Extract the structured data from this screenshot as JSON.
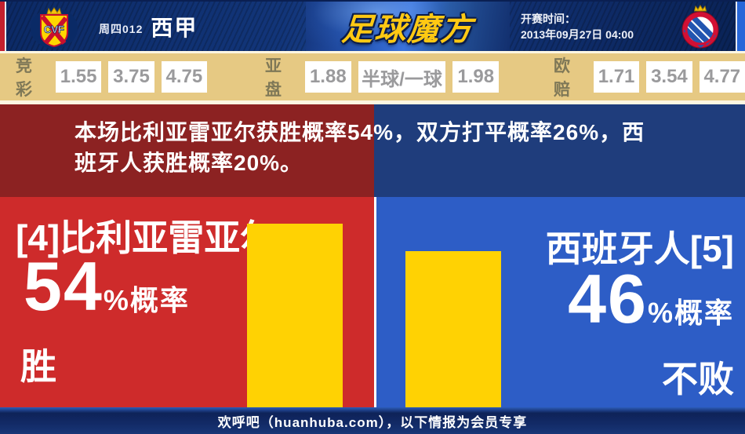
{
  "header": {
    "match_code": "周四012",
    "league": "西甲",
    "site_logo": "足球魔方",
    "home_badge_monogram": "CVF",
    "kickoff_label": "开赛时间：",
    "kickoff_time": "2013年09月27日 04:00"
  },
  "odds": {
    "groups": [
      {
        "label": "竞彩",
        "values": [
          "1.55",
          "3.75",
          "4.75"
        ]
      },
      {
        "label": "亚盘",
        "values": [
          "1.88",
          "半球/一球",
          "1.98"
        ]
      },
      {
        "label": "欧赔",
        "values": [
          "1.71",
          "3.54",
          "4.77"
        ]
      }
    ]
  },
  "banner": {
    "lines": [
      "本场比利亚雷亚尔获胜概率54%，双方打平概率26%，西",
      "班牙人获胜概率20%。"
    ]
  },
  "prediction": {
    "home": {
      "team": "[4]比利亚雷亚尔",
      "percent": "54",
      "suffix": "%概率",
      "outcome": "胜",
      "bar_percent": 54
    },
    "away": {
      "team": "西班牙人[5]",
      "percent": "46",
      "suffix": "%概率",
      "outcome": "不败",
      "bar_percent": 46
    }
  },
  "footer": {
    "text": "欢呼吧（huanhuba.com），以下情报为会员专享"
  },
  "colors": {
    "home_bright": "#ce2b2b",
    "away_bright": "#2d5dc6",
    "home_dark": "#8c2222",
    "away_dark": "#1f3d7c",
    "bar_yellow": "#ffd203",
    "odds_bg": "#e6c983",
    "header_navy": "#123579",
    "logo_gold": "#ffc913",
    "left_edge_red": "#c3202e",
    "right_edge_blue": "#2767d9"
  }
}
